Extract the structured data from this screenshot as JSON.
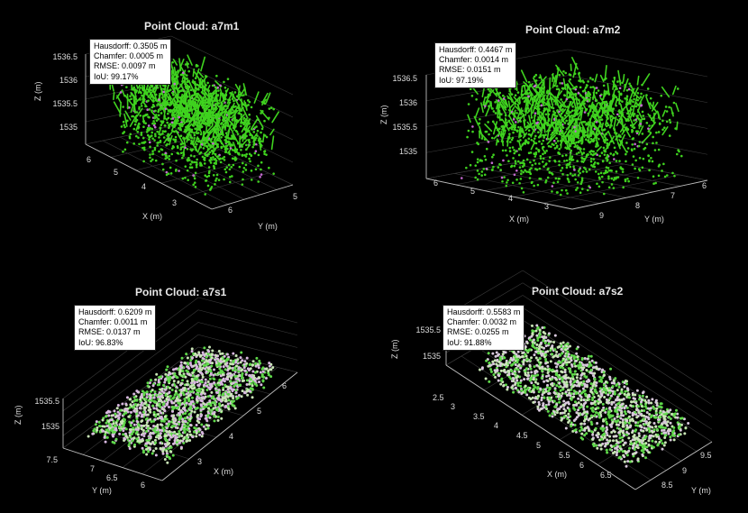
{
  "chart_data": [
    {
      "type": "scatter",
      "title": "Point Cloud: a7m1",
      "xlabel": "X (m)",
      "ylabel": "Y (m)",
      "zlabel": "Z (m)",
      "z_ticks": [
        "1535",
        "1535.5",
        "1536",
        "1536.5"
      ],
      "x_ticks": [
        "3",
        "4",
        "5",
        "6"
      ],
      "y_ticks": [
        "5",
        "6"
      ],
      "metrics": {
        "hausdorff": "Hausdorff: 0.3505 m",
        "chamfer": "Chamfer: 0.0005 m",
        "rmse": "RMSE: 0.0097 m",
        "iou": "IoU: 99.17%"
      },
      "colors": {
        "reference": "#3fd21f",
        "predicted": "#c46ad0"
      }
    },
    {
      "type": "scatter",
      "title": "Point Cloud: a7m2",
      "xlabel": "X (m)",
      "ylabel": "Y (m)",
      "zlabel": "Z (m)",
      "z_ticks": [
        "1535",
        "1535.5",
        "1536",
        "1536.5"
      ],
      "x_ticks": [
        "3",
        "4",
        "5",
        "6"
      ],
      "y_ticks": [
        "9",
        "8",
        "7",
        "6"
      ],
      "metrics": {
        "hausdorff": "Hausdorff: 0.4467 m",
        "chamfer": "Chamfer: 0.0014 m",
        "rmse": "RMSE: 0.0151 m",
        "iou": "IoU: 97.19%"
      },
      "colors": {
        "reference": "#3fd21f",
        "predicted": "#c46ad0"
      }
    },
    {
      "type": "scatter",
      "title": "Point Cloud: a7s1",
      "xlabel": "X (m)",
      "ylabel": "Y (m)",
      "zlabel": "Z (m)",
      "z_ticks": [
        "1535",
        "1535.5"
      ],
      "x_ticks": [
        "3",
        "4",
        "5",
        "6"
      ],
      "y_ticks": [
        "7.5",
        "7",
        "6.5",
        "6"
      ],
      "metrics": {
        "hausdorff": "Hausdorff: 0.6209 m",
        "chamfer": "Chamfer: 0.0011 m",
        "rmse": "RMSE: 0.0137 m",
        "iou": "IoU: 96.83%"
      },
      "colors": {
        "reference": "#5fd84a",
        "predicted": "#d8b8e0"
      }
    },
    {
      "type": "scatter",
      "title": "Point Cloud: a7s2",
      "xlabel": "X (m)",
      "ylabel": "Y (m)",
      "zlabel": "Z (m)",
      "z_ticks": [
        "1535",
        "1535.5"
      ],
      "x_ticks": [
        "2.5",
        "3",
        "3.5",
        "4",
        "4.5",
        "5",
        "5.5",
        "6",
        "6.5"
      ],
      "y_ticks": [
        "8.5",
        "9",
        "9.5"
      ],
      "metrics": {
        "hausdorff": "Hausdorff: 0.5583 m",
        "chamfer": "Chamfer: 0.0032 m",
        "rmse": "RMSE: 0.0255 m",
        "iou": "IoU: 91.88%"
      },
      "colors": {
        "reference": "#5fd84a",
        "predicted": "#d8c8dc"
      }
    }
  ]
}
